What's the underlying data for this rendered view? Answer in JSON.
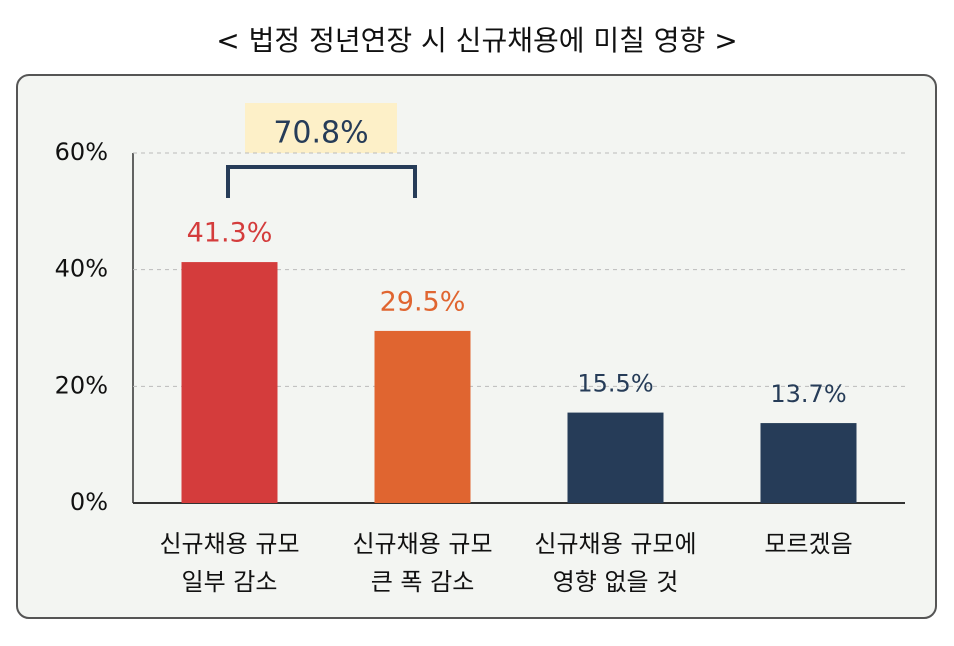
{
  "chart_data": {
    "type": "bar",
    "title": "< 법정 정년연장 시 신규채용에 미칠 영향 >",
    "categories": [
      [
        "신규채용 규모",
        "일부 감소"
      ],
      [
        "신규채용 규모",
        "큰 폭 감소"
      ],
      [
        "신규채용 규모에",
        "영향 없을 것"
      ],
      [
        "모르겠음"
      ]
    ],
    "values": [
      41.3,
      29.5,
      15.5,
      13.7
    ],
    "value_labels": [
      "41.3%",
      "29.5%",
      "15.5%",
      "13.7%"
    ],
    "colors": [
      "#d43c3c",
      "#e06530",
      "#263c58",
      "#263c58"
    ],
    "annotation": "70.8%",
    "ylim": [
      0,
      60
    ],
    "yticks": [
      {
        "value": 0,
        "label": "0%"
      },
      {
        "value": 20,
        "label": "20%"
      },
      {
        "value": 40,
        "label": "40%"
      },
      {
        "value": 60,
        "label": "60%"
      }
    ],
    "grid": true
  }
}
